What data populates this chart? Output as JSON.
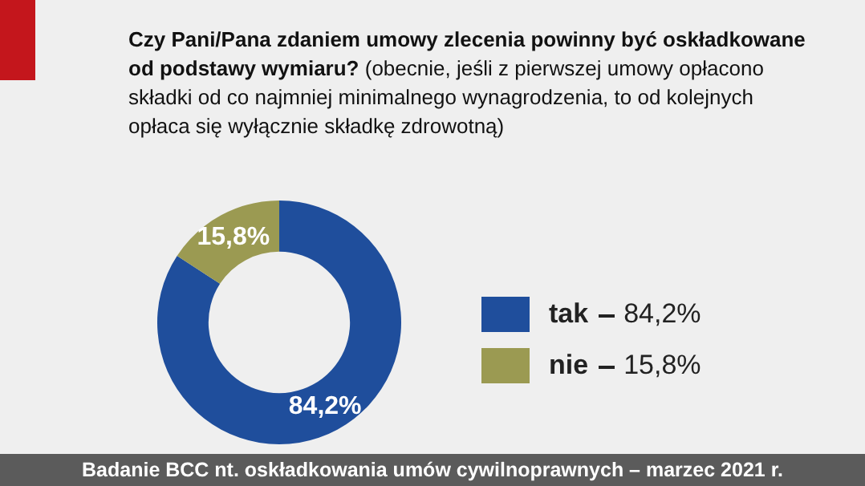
{
  "chart_data": {
    "type": "donut",
    "title": "Czy Pani/Pana zdaniem umowy zlecenia powinny być oskładkowane od podstawy wymiaru?",
    "subtitle": "(obecnie, jeśli z pierwszej umowy opłacono składki od co najmniej minimalnego wynagrodzenia, to od kolejnych opłaca się wyłącznie składkę zdrowotną)",
    "categories": [
      "tak",
      "nie"
    ],
    "values": [
      84.2,
      15.8
    ],
    "value_labels": [
      "84,2%",
      "15,8%"
    ],
    "colors": [
      "#1f4e9c",
      "#9b9a52"
    ],
    "legend": "right",
    "annotations": [
      "Badanie BCC nt. oskładkowania umów cywilnoprawnych – marzec 2021 r."
    ]
  }
}
